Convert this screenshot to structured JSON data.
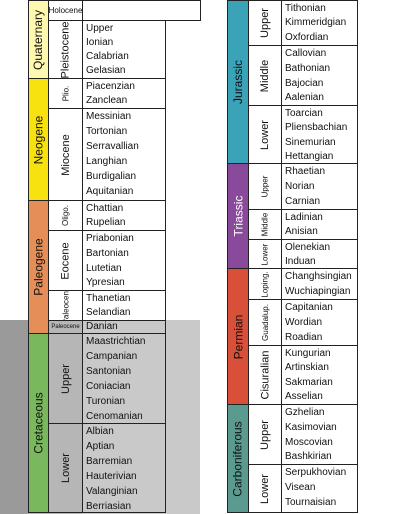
{
  "colors": {
    "quaternary": "#fff9b0",
    "neogene": "#f7e20f",
    "paleogene": "#e58e57",
    "cretaceous": "#7ab85e",
    "jurassic": "#3aa3b8",
    "triassic": "#8a4a9c",
    "permian": "#d9503a",
    "carboniferous": "#5b9a8e",
    "shade": "#c9c9c9"
  },
  "left": {
    "periods": {
      "quaternary": "Quaternary",
      "neogene": "Neogene",
      "paleogene": "Paleogene",
      "cretaceous": "Cretaceous"
    },
    "epochs": {
      "holocene": "Holocene",
      "pleistocene": "Pleistocene",
      "pliocene": "Plio.",
      "miocene": "Miocene",
      "oligocene": "Oligo.",
      "eocene": "Eocene",
      "paleocene": "Paleocene",
      "upper": "Upper",
      "lower": "Lower"
    },
    "stages": {
      "pleistocene": [
        "Upper",
        "Ionian",
        "Calabrian",
        "Gelasian"
      ],
      "pliocene": [
        "Piacenzian",
        "Zanclean"
      ],
      "miocene": [
        "Messinian",
        "Tortonian",
        "Serravallian",
        "Langhian",
        "Burdigalian",
        "Aquitanian"
      ],
      "oligocene": [
        "Chattian",
        "Rupelian"
      ],
      "eocene": [
        "Priabonian",
        "Bartonian",
        "Lutetian",
        "Ypresian"
      ],
      "paleocene_upper": [
        "Thanetian",
        "Selandian"
      ],
      "paleocene_danian": [
        "Danian"
      ],
      "cretaceous_upper": [
        "Maastrichtian",
        "Campanian",
        "Santonian",
        "Coniacian",
        "Turonian",
        "Cenomanian"
      ],
      "cretaceous_lower": [
        "Albian",
        "Aptian",
        "Barremian",
        "Hauterivian",
        "Valanginian",
        "Berriasian"
      ]
    }
  },
  "right": {
    "periods": {
      "jurassic": "Jurassic",
      "triassic": "Triassic",
      "permian": "Permian",
      "carboniferous": "Carboniferous"
    },
    "epochs": {
      "j_upper": "Upper",
      "j_middle": "Middle",
      "j_lower": "Lower",
      "t_upper": "Upper",
      "t_middle": "Middle",
      "t_lower": "Lower",
      "lopingian": "Loping.",
      "guadalupian": "Guadalup.",
      "cisuralian": "Cisuralian",
      "c_upper": "Upper",
      "c_lower": "Lower"
    },
    "stages": {
      "j_upper": [
        "Tithonian",
        "Kimmeridgian",
        "Oxfordian"
      ],
      "j_middle": [
        "Callovian",
        "Bathonian",
        "Bajocian",
        "Aalenian"
      ],
      "j_lower": [
        "Toarcian",
        "Pliensbachian",
        "Sinemurian",
        "Hettangian"
      ],
      "t_upper": [
        "Rhaetian",
        "Norian",
        "Carnian"
      ],
      "t_middle": [
        "Ladinian",
        "Anisian"
      ],
      "t_lower": [
        "Olenekian",
        "Induan"
      ],
      "lopingian": [
        "Changhsingian",
        "Wuchiapingian"
      ],
      "guadalupian": [
        "Capitanian",
        "Wordian",
        "Roadian"
      ],
      "cisuralian": [
        "Kungurian",
        "Artinskian",
        "Sakmarian",
        "Asselian"
      ],
      "c_upper": [
        "Gzhelian",
        "Kasimovian",
        "Moscovian",
        "Bashkirian"
      ],
      "c_lower": [
        "Serpukhovian",
        "Visean",
        "Tournaisian"
      ]
    }
  }
}
